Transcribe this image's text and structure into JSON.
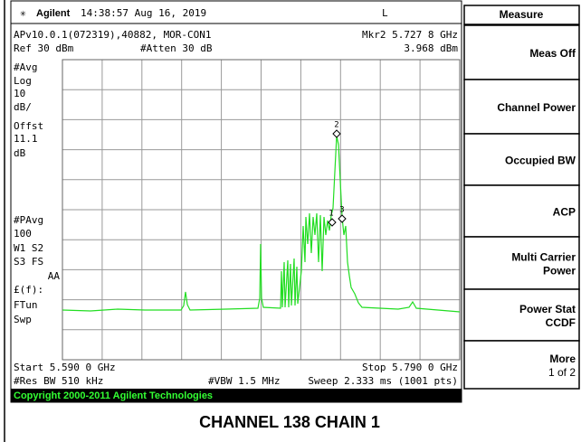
{
  "header": {
    "brand": "Agilent",
    "time": "14:38:57  Aug 16, 2019",
    "mode": "L"
  },
  "info": {
    "version": "APv10.0.1(072319),40882, MOR-CON1",
    "marker_freq": "Mkr2  5.727 8 GHz",
    "ref": "Ref 30 dBm",
    "atten": "#Atten 30 dB",
    "marker_value": "3.968 dBm"
  },
  "left_labels": [
    "#Avg",
    "Log",
    "10",
    "dB/",
    "Offst",
    "11.1",
    "dB",
    "#PAvg",
    "100",
    "W1  S2",
    "S3  FS",
    "AA",
    "£(f):",
    "FTun",
    "Swp"
  ],
  "markers": [
    "1",
    "2",
    "3"
  ],
  "footer": {
    "start": "Start 5.590 0 GHz",
    "stop": "Stop 5.790 0 GHz",
    "res_bw": "#Res BW 510 kHz",
    "vbw": "#VBW 1.5 MHz",
    "sweep": "Sweep 2.333 ms (1001 pts)"
  },
  "copyright": "Copyright 2000-2011 Agilent Technologies",
  "caption": "CHANNEL 138 CHAIN 1",
  "softkeys": {
    "title": "Measure",
    "keys": [
      [
        "Meas Off"
      ],
      [
        "Channel Power"
      ],
      [
        "Occupied BW"
      ],
      [
        "ACP"
      ],
      [
        "Multi Carrier",
        "Power"
      ],
      [
        "Power Stat",
        "CCDF"
      ],
      [
        "More",
        "1 of 2"
      ]
    ]
  }
}
